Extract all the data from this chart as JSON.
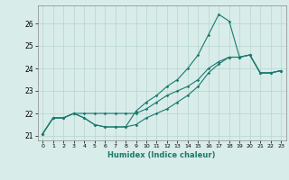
{
  "xlabel": "Humidex (Indice chaleur)",
  "ylabel": "",
  "bg_color": "#d8ecea",
  "line_color": "#1a7a6e",
  "grid_color": "#b8d4d0",
  "xlim": [
    -0.5,
    23.5
  ],
  "ylim": [
    20.8,
    26.8
  ],
  "yticks": [
    21,
    22,
    23,
    24,
    25,
    26
  ],
  "xticks": [
    0,
    1,
    2,
    3,
    4,
    5,
    6,
    7,
    8,
    9,
    10,
    11,
    12,
    13,
    14,
    15,
    16,
    17,
    18,
    19,
    20,
    21,
    22,
    23
  ],
  "series1": [
    21.1,
    21.8,
    21.8,
    22.0,
    21.8,
    21.5,
    21.4,
    21.4,
    21.4,
    22.1,
    22.5,
    22.8,
    23.2,
    23.5,
    24.0,
    24.6,
    25.5,
    26.4,
    26.1,
    24.5,
    24.6,
    23.8,
    23.8,
    23.9
  ],
  "series2": [
    21.1,
    21.8,
    21.8,
    22.0,
    22.0,
    22.0,
    22.0,
    22.0,
    22.0,
    22.0,
    22.2,
    22.5,
    22.8,
    23.0,
    23.2,
    23.5,
    24.0,
    24.3,
    24.5,
    24.5,
    24.6,
    23.8,
    23.8,
    23.9
  ],
  "series3": [
    21.1,
    21.8,
    21.8,
    22.0,
    21.8,
    21.5,
    21.4,
    21.4,
    21.4,
    21.5,
    21.8,
    22.0,
    22.2,
    22.5,
    22.8,
    23.2,
    23.8,
    24.2,
    24.5,
    24.5,
    24.6,
    23.8,
    23.8,
    23.9
  ]
}
